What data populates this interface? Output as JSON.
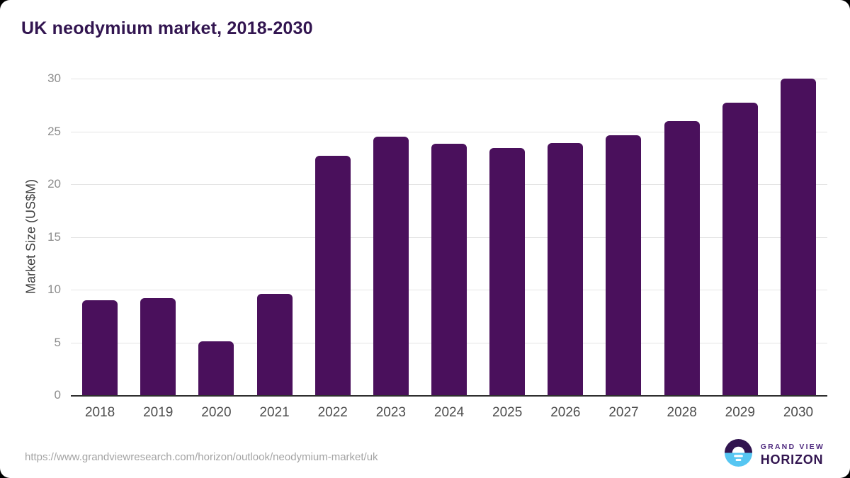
{
  "page": {
    "title": "UK neodymium market, 2018-2030"
  },
  "chart_data": {
    "type": "bar",
    "title": "UK neodymium market, 2018-2030",
    "categories": [
      "2018",
      "2019",
      "2020",
      "2021",
      "2022",
      "2023",
      "2024",
      "2025",
      "2026",
      "2027",
      "2028",
      "2029",
      "2030"
    ],
    "values": [
      9.0,
      9.2,
      5.1,
      9.6,
      22.7,
      24.5,
      23.8,
      23.4,
      23.9,
      24.6,
      26.0,
      27.7,
      30.0
    ],
    "xlabel": "",
    "ylabel": "Market Size (US$M)",
    "ylim": [
      0,
      30
    ],
    "yticks": [
      0,
      5,
      10,
      15,
      20,
      25,
      30
    ],
    "grid": true,
    "legend": "none",
    "bar_color": "#4A105C"
  },
  "footer": {
    "source_url": "https://www.grandviewresearch.com/horizon/outlook/neodymium-market/uk",
    "logo": {
      "line1": "GRAND VIEW",
      "line2": "HORIZON"
    }
  },
  "colors": {
    "title_text": "#321550",
    "bar_fill": "#4A105C",
    "gridline": "#E4E4E4",
    "axis_line": "#2F2F2F",
    "y_tick_text": "#8C8C8C",
    "x_tick_text": "#4D4D4D",
    "url_text": "#A3A3A3",
    "logo_purple": "#321550",
    "logo_blue": "#56C6F2",
    "logo_grandview_text": "#4F2A7F"
  }
}
